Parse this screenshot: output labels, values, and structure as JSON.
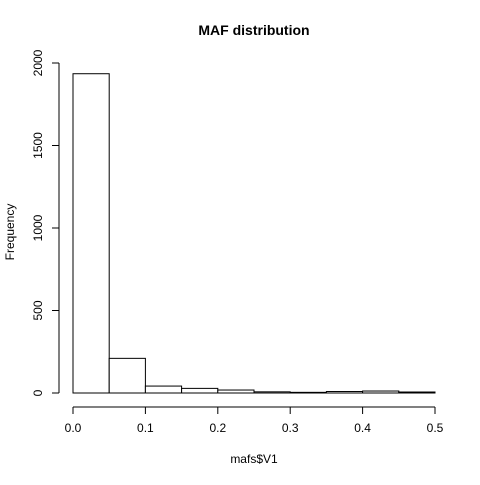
{
  "chart_data": {
    "type": "bar",
    "title": "MAF distribution",
    "xlabel": "mafs$V1",
    "ylabel": "Frequency",
    "bins": [
      {
        "x0": 0.0,
        "x1": 0.05,
        "count": 1935
      },
      {
        "x0": 0.05,
        "x1": 0.1,
        "count": 210
      },
      {
        "x0": 0.1,
        "x1": 0.15,
        "count": 42
      },
      {
        "x0": 0.15,
        "x1": 0.2,
        "count": 28
      },
      {
        "x0": 0.2,
        "x1": 0.25,
        "count": 18
      },
      {
        "x0": 0.25,
        "x1": 0.3,
        "count": 7
      },
      {
        "x0": 0.3,
        "x1": 0.35,
        "count": 4
      },
      {
        "x0": 0.35,
        "x1": 0.4,
        "count": 9
      },
      {
        "x0": 0.4,
        "x1": 0.45,
        "count": 12
      },
      {
        "x0": 0.45,
        "x1": 0.5,
        "count": 6
      }
    ],
    "xlim": [
      0,
      0.5
    ],
    "ylim": [
      0,
      2000
    ],
    "x_ticks": [
      0.0,
      0.1,
      0.2,
      0.3,
      0.4,
      0.5
    ],
    "x_tick_labels": [
      "0.0",
      "0.1",
      "0.2",
      "0.3",
      "0.4",
      "0.5"
    ],
    "y_ticks": [
      0,
      500,
      1000,
      1500,
      2000
    ],
    "y_tick_labels": [
      "0",
      "500",
      "1000",
      "1500",
      "2000"
    ],
    "grid": false,
    "bar_fill": "#ffffff",
    "bar_stroke": "#000000"
  }
}
